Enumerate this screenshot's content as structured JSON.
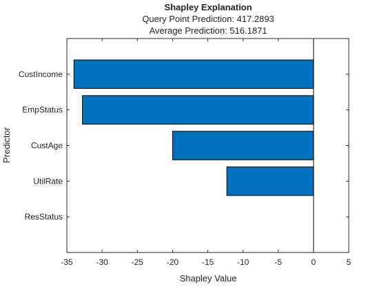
{
  "chart_data": {
    "type": "bar",
    "orientation": "horizontal",
    "title": "Shapley Explanation",
    "subtitle_lines": [
      "Query Point Prediction: 417.2893",
      "Average Prediction: 516.1871"
    ],
    "xlabel": "Shapley Value",
    "ylabel": "Predictor",
    "categories": [
      "CustIncome",
      "EmpStatus",
      "CustAge",
      "UtilRate",
      "ResStatus"
    ],
    "values": [
      -34.0,
      -32.8,
      -20.0,
      -12.3,
      0.0
    ],
    "xlim": [
      -35,
      5
    ],
    "xticks": [
      -35,
      -30,
      -25,
      -20,
      -15,
      -10,
      -5,
      0,
      5
    ],
    "grid": false,
    "legend": "none",
    "colors": {
      "bar_fill": "#0072BD",
      "bar_edge": "#000000",
      "axis": "#262626",
      "zero_line": "#000000"
    }
  }
}
